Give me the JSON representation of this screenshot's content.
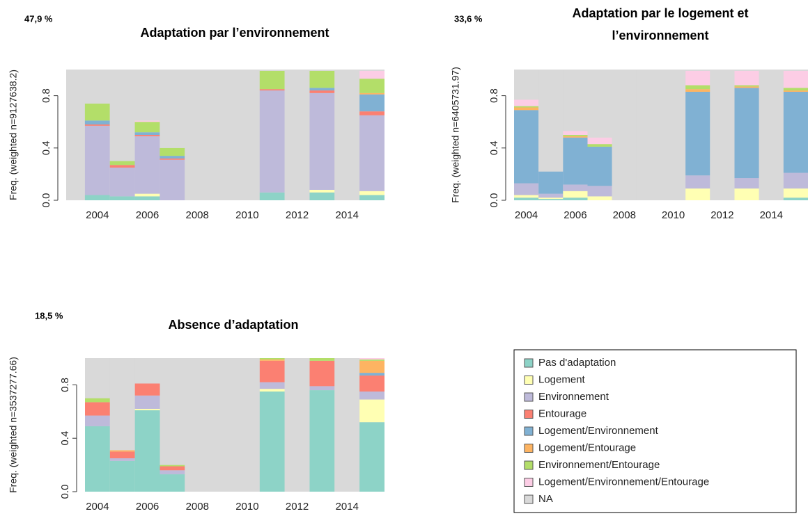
{
  "chart_data": [
    {
      "type": "bar",
      "stacked": true,
      "annotation": "47,9 %",
      "title": [
        "Adaptation par l’environnement"
      ],
      "y_label": "Freq. (weighted n=9127638.2)",
      "x": [
        2004,
        2005,
        2006,
        2007,
        2008,
        2009,
        2010,
        2011,
        2012,
        2013,
        2014,
        2015
      ],
      "xlim": [
        2002.75,
        2015.5
      ],
      "xticks": [
        2004,
        2006,
        2008,
        2010,
        2012,
        2014
      ],
      "ylim": [
        0,
        1
      ],
      "yticks": [
        {
          "value": 0,
          "label": "0.0"
        },
        0.4,
        0.8
      ],
      "series": [
        {
          "name": "Pas d'adaptation",
          "color": "#8dd3c7",
          "values": [
            0.04,
            0.03,
            0.03,
            0,
            0,
            0,
            0,
            0.06,
            0,
            0.06,
            0,
            0.04
          ]
        },
        {
          "name": "Logement",
          "color": "#ffffb3",
          "values": [
            0,
            0,
            0.02,
            0,
            0,
            0,
            0,
            0,
            0,
            0.02,
            0,
            0.03
          ]
        },
        {
          "name": "Environnement",
          "color": "#bebada",
          "values": [
            0.53,
            0.22,
            0.44,
            0.31,
            0,
            0,
            0,
            0.78,
            0,
            0.74,
            0,
            0.58
          ]
        },
        {
          "name": "Entourage",
          "color": "#fb8072",
          "values": [
            0.01,
            0.02,
            0.01,
            0.01,
            0,
            0,
            0,
            0.01,
            0,
            0.02,
            0,
            0.03
          ]
        },
        {
          "name": "Logement/Environnement",
          "color": "#80b1d3",
          "values": [
            0.03,
            0,
            0.02,
            0.02,
            0,
            0,
            0,
            0,
            0,
            0.02,
            0,
            0.13
          ]
        },
        {
          "name": "Logement/Entourage",
          "color": "#fdb462",
          "values": [
            0,
            0,
            0,
            0,
            0,
            0,
            0,
            0,
            0,
            0,
            0,
            0.01
          ]
        },
        {
          "name": "Environnement/Entourage",
          "color": "#b3de69",
          "values": [
            0.13,
            0.03,
            0.08,
            0.06,
            0,
            0,
            0,
            0.14,
            0,
            0.13,
            0,
            0.11
          ]
        },
        {
          "name": "Logement/Environnement/Entourage",
          "color": "#fccde5",
          "values": [
            0,
            0,
            0.01,
            0,
            0,
            0,
            0,
            0,
            0,
            0,
            0,
            0.06
          ]
        },
        {
          "name": "NA",
          "color": "#d9d9d9",
          "values": [
            0.26,
            0.7,
            0.39,
            0.6,
            1,
            1,
            1,
            0.01,
            1,
            0.01,
            1,
            0.01
          ]
        }
      ]
    },
    {
      "type": "bar",
      "stacked": true,
      "annotation": "33,6 %",
      "title": [
        "Adaptation par le logement et",
        "l’environnement"
      ],
      "y_label": "Freq. (weighted n=6405731.97)",
      "x": [
        2004,
        2005,
        2006,
        2007,
        2008,
        2009,
        2010,
        2011,
        2012,
        2013,
        2014,
        2015
      ],
      "xlim": [
        2003.5,
        2015.5
      ],
      "xticks": [
        2004,
        2006,
        2008,
        2010,
        2012,
        2014
      ],
      "ylim": [
        0,
        1
      ],
      "yticks": [
        {
          "value": 0,
          "label": "0.0"
        },
        0.4,
        0.8
      ],
      "series": [
        {
          "name": "Pas d'adaptation",
          "color": "#8dd3c7",
          "values": [
            0.02,
            0.01,
            0.02,
            0,
            0,
            0,
            0,
            0,
            0,
            0,
            0,
            0.02
          ]
        },
        {
          "name": "Logement",
          "color": "#ffffb3",
          "values": [
            0.02,
            0.01,
            0.05,
            0.03,
            0,
            0,
            0,
            0.09,
            0,
            0.09,
            0,
            0.07
          ]
        },
        {
          "name": "Environnement",
          "color": "#bebada",
          "values": [
            0.09,
            0.03,
            0.05,
            0.08,
            0,
            0,
            0,
            0.1,
            0,
            0.08,
            0,
            0.12
          ]
        },
        {
          "name": "Entourage",
          "color": "#fb8072",
          "values": [
            0,
            0,
            0,
            0,
            0,
            0,
            0,
            0,
            0,
            0,
            0,
            0
          ]
        },
        {
          "name": "Logement/Environnement",
          "color": "#80b1d3",
          "values": [
            0.56,
            0.17,
            0.36,
            0.3,
            0,
            0,
            0,
            0.64,
            0,
            0.69,
            0,
            0.62
          ]
        },
        {
          "name": "Logement/Entourage",
          "color": "#fdb462",
          "values": [
            0.02,
            0,
            0.01,
            0,
            0,
            0,
            0,
            0.02,
            0,
            0.01,
            0,
            0.01
          ]
        },
        {
          "name": "Environnement/Entourage",
          "color": "#b3de69",
          "values": [
            0.01,
            0,
            0.01,
            0.02,
            0,
            0,
            0,
            0.03,
            0,
            0.01,
            0,
            0.02
          ]
        },
        {
          "name": "Logement/Environnement/Entourage",
          "color": "#fccde5",
          "values": [
            0.05,
            0,
            0.03,
            0.05,
            0,
            0,
            0,
            0.11,
            0,
            0.11,
            0,
            0.13
          ]
        },
        {
          "name": "NA",
          "color": "#d9d9d9",
          "values": [
            0.23,
            0.78,
            0.47,
            0.52,
            1,
            1,
            1,
            0.01,
            1,
            0.01,
            1,
            0.01
          ]
        }
      ]
    },
    {
      "type": "bar",
      "stacked": true,
      "annotation": "18,5 %",
      "title": [
        "Absence d’adaptation"
      ],
      "y_label": "Freq. (weighted n=3537277.66)",
      "legend": "bottom-right",
      "x": [
        2004,
        2005,
        2006,
        2007,
        2008,
        2009,
        2010,
        2011,
        2012,
        2013,
        2014,
        2015
      ],
      "xlim": [
        2003.5,
        2015.5
      ],
      "xticks": [
        2004,
        2006,
        2008,
        2010,
        2012,
        2014
      ],
      "ylim": [
        0,
        1
      ],
      "yticks": [
        {
          "value": 0,
          "label": "0.0"
        },
        0.4,
        0.8
      ],
      "series": [
        {
          "name": "Pas d'adaptation",
          "color": "#8dd3c7",
          "values": [
            0.49,
            0.23,
            0.61,
            0.13,
            0,
            0,
            0,
            0.75,
            0,
            0.76,
            0,
            0.52
          ]
        },
        {
          "name": "Logement",
          "color": "#ffffb3",
          "values": [
            0,
            0,
            0.01,
            0,
            0,
            0,
            0,
            0.02,
            0,
            0,
            0,
            0.17
          ]
        },
        {
          "name": "Environnement",
          "color": "#bebada",
          "values": [
            0.08,
            0.02,
            0.1,
            0.03,
            0,
            0,
            0,
            0.05,
            0,
            0.03,
            0,
            0.06
          ]
        },
        {
          "name": "Entourage",
          "color": "#fb8072",
          "values": [
            0.1,
            0.05,
            0.09,
            0.03,
            0,
            0,
            0,
            0.16,
            0,
            0.19,
            0,
            0.12
          ]
        },
        {
          "name": "Logement/Environnement",
          "color": "#80b1d3",
          "values": [
            0,
            0,
            0,
            0,
            0,
            0,
            0,
            0,
            0,
            0,
            0,
            0.02
          ]
        },
        {
          "name": "Logement/Entourage",
          "color": "#fdb462",
          "values": [
            0,
            0.01,
            0,
            0,
            0,
            0,
            0,
            0.01,
            0,
            0,
            0,
            0.09
          ]
        },
        {
          "name": "Environnement/Entourage",
          "color": "#b3de69",
          "values": [
            0.03,
            0,
            0,
            0.01,
            0,
            0,
            0,
            0.01,
            0,
            0.02,
            0,
            0.01
          ]
        },
        {
          "name": "Logement/Environnement/Entourage",
          "color": "#fccde5",
          "values": [
            0,
            0,
            0,
            0,
            0,
            0,
            0,
            0,
            0,
            0,
            0,
            0.01
          ]
        },
        {
          "name": "NA",
          "color": "#d9d9d9",
          "values": [
            0.3,
            0.69,
            0.19,
            0.8,
            1,
            1,
            1,
            0,
            1,
            0,
            1,
            0
          ]
        }
      ]
    }
  ]
}
